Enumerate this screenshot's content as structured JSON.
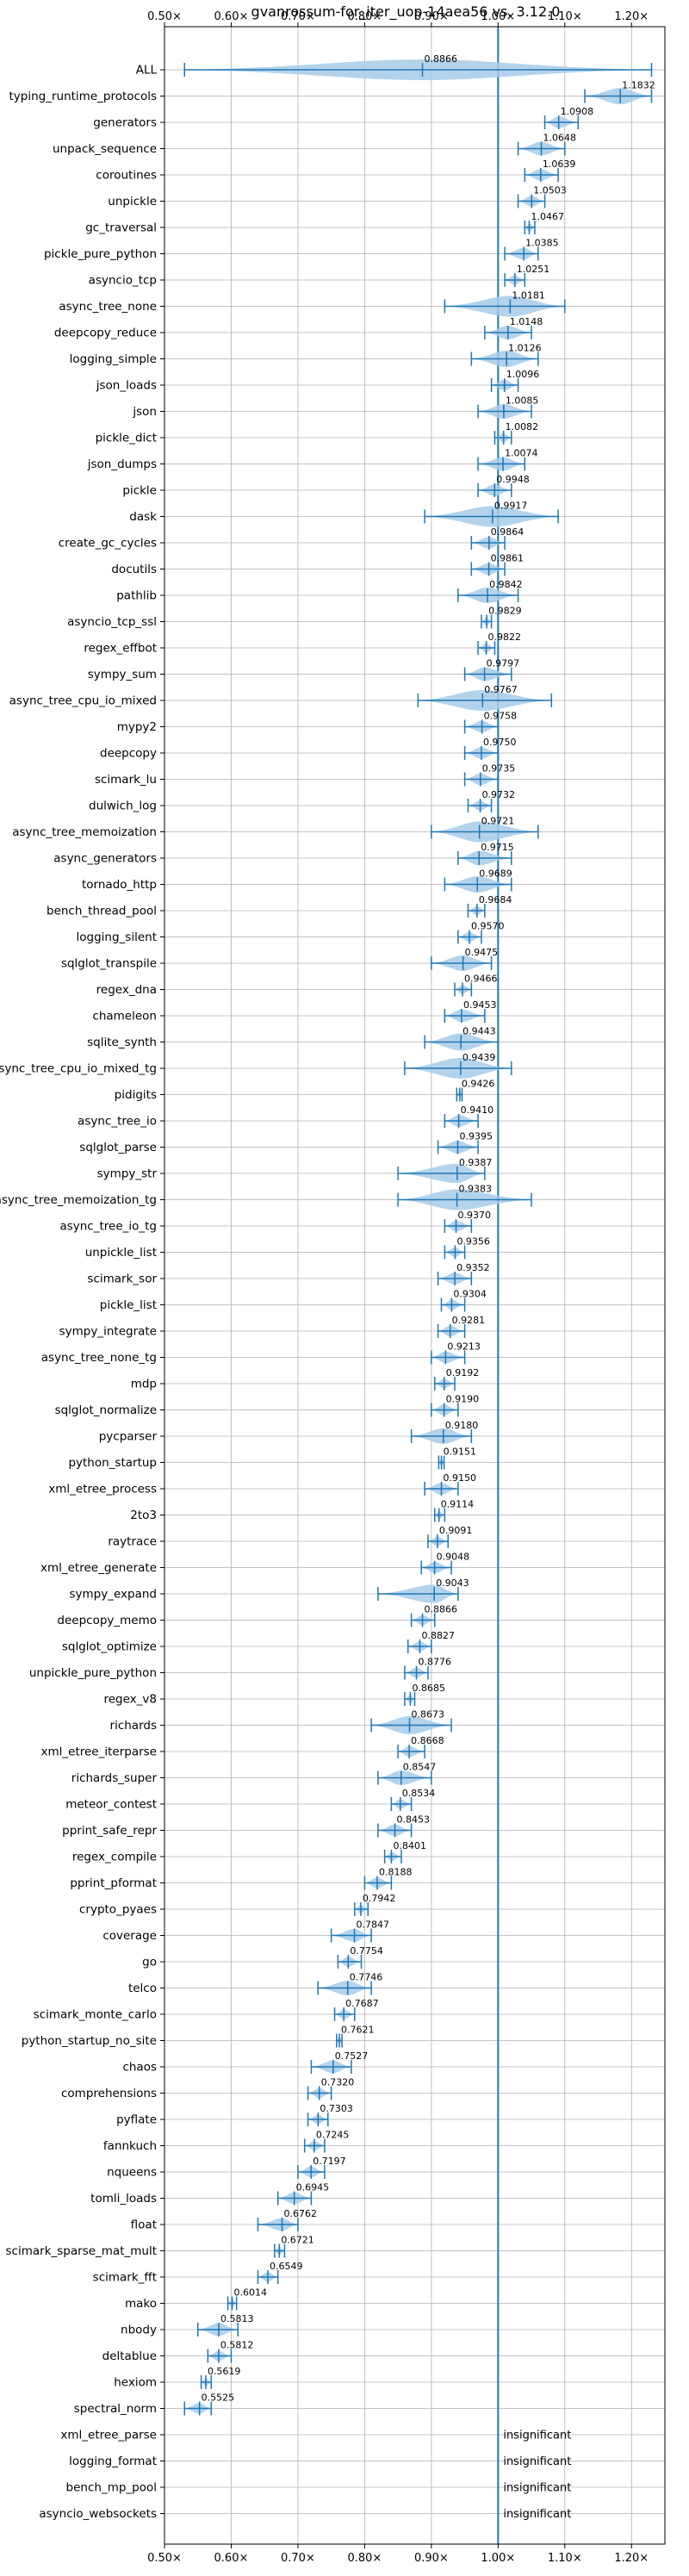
{
  "chart_data": {
    "type": "violin",
    "title": "gvanrossum-for_iter_uop-14aea56 vs. 3.12.0",
    "xlim": [
      0.5,
      1.25
    ],
    "reference_line": 1.0,
    "grid": true,
    "x_ticks": [
      "0.50×",
      "0.60×",
      "0.70×",
      "0.80×",
      "0.90×",
      "1.00×",
      "1.10×",
      "1.20×"
    ],
    "x_tick_values": [
      0.5,
      0.6,
      0.7,
      0.8,
      0.9,
      1.0,
      1.1,
      1.2
    ],
    "colors": {
      "violin": "#a6cbe9",
      "whisker": "#1f77b4",
      "refline": "#1f77b4",
      "grid": "#b0b0b0"
    },
    "insignificant_text": "insignificant",
    "benchmarks": [
      {
        "name": "ALL",
        "value": 0.8866,
        "label": "0.8866",
        "min": 0.53,
        "max": 1.23
      },
      {
        "name": "typing_runtime_protocols",
        "value": 1.1832,
        "label": "1.1832",
        "min": 1.13,
        "max": 1.23
      },
      {
        "name": "generators",
        "value": 1.0908,
        "label": "1.0908",
        "min": 1.07,
        "max": 1.12
      },
      {
        "name": "unpack_sequence",
        "value": 1.0648,
        "label": "1.0648",
        "min": 1.03,
        "max": 1.1
      },
      {
        "name": "coroutines",
        "value": 1.0639,
        "label": "1.0639",
        "min": 1.04,
        "max": 1.09
      },
      {
        "name": "unpickle",
        "value": 1.0503,
        "label": "1.0503",
        "min": 1.03,
        "max": 1.07
      },
      {
        "name": "gc_traversal",
        "value": 1.0467,
        "label": "1.0467",
        "min": 1.04,
        "max": 1.055
      },
      {
        "name": "pickle_pure_python",
        "value": 1.0385,
        "label": "1.0385",
        "min": 1.01,
        "max": 1.06
      },
      {
        "name": "asyncio_tcp",
        "value": 1.0251,
        "label": "1.0251",
        "min": 1.01,
        "max": 1.04
      },
      {
        "name": "async_tree_none",
        "value": 1.0181,
        "label": "1.0181",
        "min": 0.92,
        "max": 1.1
      },
      {
        "name": "deepcopy_reduce",
        "value": 1.0148,
        "label": "1.0148",
        "min": 0.98,
        "max": 1.05
      },
      {
        "name": "logging_simple",
        "value": 1.0126,
        "label": "1.0126",
        "min": 0.96,
        "max": 1.06
      },
      {
        "name": "json_loads",
        "value": 1.0096,
        "label": "1.0096",
        "min": 0.99,
        "max": 1.03
      },
      {
        "name": "json",
        "value": 1.0085,
        "label": "1.0085",
        "min": 0.97,
        "max": 1.05
      },
      {
        "name": "pickle_dict",
        "value": 1.0082,
        "label": "1.0082",
        "min": 0.995,
        "max": 1.02
      },
      {
        "name": "json_dumps",
        "value": 1.0074,
        "label": "1.0074",
        "min": 0.97,
        "max": 1.04
      },
      {
        "name": "pickle",
        "value": 0.9948,
        "label": "0.9948",
        "min": 0.97,
        "max": 1.02
      },
      {
        "name": "dask",
        "value": 0.9917,
        "label": "0.9917",
        "min": 0.89,
        "max": 1.09
      },
      {
        "name": "create_gc_cycles",
        "value": 0.9864,
        "label": "0.9864",
        "min": 0.96,
        "max": 1.01
      },
      {
        "name": "docutils",
        "value": 0.9861,
        "label": "0.9861",
        "min": 0.96,
        "max": 1.01
      },
      {
        "name": "pathlib",
        "value": 0.9842,
        "label": "0.9842",
        "min": 0.94,
        "max": 1.03
      },
      {
        "name": "asyncio_tcp_ssl",
        "value": 0.9829,
        "label": "0.9829",
        "min": 0.975,
        "max": 0.99
      },
      {
        "name": "regex_effbot",
        "value": 0.9822,
        "label": "0.9822",
        "min": 0.97,
        "max": 0.995
      },
      {
        "name": "sympy_sum",
        "value": 0.9797,
        "label": "0.9797",
        "min": 0.95,
        "max": 1.02
      },
      {
        "name": "async_tree_cpu_io_mixed",
        "value": 0.9767,
        "label": "0.9767",
        "min": 0.88,
        "max": 1.08
      },
      {
        "name": "mypy2",
        "value": 0.9758,
        "label": "0.9758",
        "min": 0.95,
        "max": 1.0
      },
      {
        "name": "deepcopy",
        "value": 0.975,
        "label": "0.9750",
        "min": 0.95,
        "max": 1.0
      },
      {
        "name": "scimark_lu",
        "value": 0.9735,
        "label": "0.9735",
        "min": 0.95,
        "max": 1.0
      },
      {
        "name": "dulwich_log",
        "value": 0.9732,
        "label": "0.9732",
        "min": 0.955,
        "max": 0.99
      },
      {
        "name": "async_tree_memoization",
        "value": 0.9721,
        "label": "0.9721",
        "min": 0.9,
        "max": 1.06
      },
      {
        "name": "async_generators",
        "value": 0.9715,
        "label": "0.9715",
        "min": 0.94,
        "max": 1.02
      },
      {
        "name": "tornado_http",
        "value": 0.9689,
        "label": "0.9689",
        "min": 0.92,
        "max": 1.02
      },
      {
        "name": "bench_thread_pool",
        "value": 0.9684,
        "label": "0.9684",
        "min": 0.955,
        "max": 0.98
      },
      {
        "name": "logging_silent",
        "value": 0.957,
        "label": "0.9570",
        "min": 0.94,
        "max": 0.975
      },
      {
        "name": "sqlglot_transpile",
        "value": 0.9475,
        "label": "0.9475",
        "min": 0.9,
        "max": 0.99
      },
      {
        "name": "regex_dna",
        "value": 0.9466,
        "label": "0.9466",
        "min": 0.935,
        "max": 0.96
      },
      {
        "name": "chameleon",
        "value": 0.9453,
        "label": "0.9453",
        "min": 0.92,
        "max": 0.98
      },
      {
        "name": "sqlite_synth",
        "value": 0.9443,
        "label": "0.9443",
        "min": 0.89,
        "max": 1.0
      },
      {
        "name": "async_tree_cpu_io_mixed_tg",
        "value": 0.9439,
        "label": "0.9439",
        "min": 0.86,
        "max": 1.02
      },
      {
        "name": "pidigits",
        "value": 0.9426,
        "label": "0.9426",
        "min": 0.938,
        "max": 0.946
      },
      {
        "name": "async_tree_io",
        "value": 0.941,
        "label": "0.9410",
        "min": 0.92,
        "max": 0.97
      },
      {
        "name": "sqlglot_parse",
        "value": 0.9395,
        "label": "0.9395",
        "min": 0.91,
        "max": 0.97
      },
      {
        "name": "sympy_str",
        "value": 0.9387,
        "label": "0.9387",
        "min": 0.85,
        "max": 0.98
      },
      {
        "name": "async_tree_memoization_tg",
        "value": 0.9383,
        "label": "0.9383",
        "min": 0.85,
        "max": 1.05
      },
      {
        "name": "async_tree_io_tg",
        "value": 0.937,
        "label": "0.9370",
        "min": 0.92,
        "max": 0.96
      },
      {
        "name": "unpickle_list",
        "value": 0.9356,
        "label": "0.9356",
        "min": 0.92,
        "max": 0.95
      },
      {
        "name": "scimark_sor",
        "value": 0.9352,
        "label": "0.9352",
        "min": 0.91,
        "max": 0.96
      },
      {
        "name": "pickle_list",
        "value": 0.9304,
        "label": "0.9304",
        "min": 0.915,
        "max": 0.95
      },
      {
        "name": "sympy_integrate",
        "value": 0.9281,
        "label": "0.9281",
        "min": 0.91,
        "max": 0.95
      },
      {
        "name": "async_tree_none_tg",
        "value": 0.9213,
        "label": "0.9213",
        "min": 0.9,
        "max": 0.95
      },
      {
        "name": "mdp",
        "value": 0.9192,
        "label": "0.9192",
        "min": 0.905,
        "max": 0.935
      },
      {
        "name": "sqlglot_normalize",
        "value": 0.919,
        "label": "0.9190",
        "min": 0.9,
        "max": 0.94
      },
      {
        "name": "pycparser",
        "value": 0.918,
        "label": "0.9180",
        "min": 0.87,
        "max": 0.96
      },
      {
        "name": "python_startup",
        "value": 0.9151,
        "label": "0.9151",
        "min": 0.911,
        "max": 0.919
      },
      {
        "name": "xml_etree_process",
        "value": 0.915,
        "label": "0.9150",
        "min": 0.89,
        "max": 0.94
      },
      {
        "name": "2to3",
        "value": 0.9114,
        "label": "0.9114",
        "min": 0.905,
        "max": 0.92
      },
      {
        "name": "raytrace",
        "value": 0.9091,
        "label": "0.9091",
        "min": 0.895,
        "max": 0.925
      },
      {
        "name": "xml_etree_generate",
        "value": 0.9048,
        "label": "0.9048",
        "min": 0.885,
        "max": 0.93
      },
      {
        "name": "sympy_expand",
        "value": 0.9043,
        "label": "0.9043",
        "min": 0.82,
        "max": 0.94
      },
      {
        "name": "deepcopy_memo",
        "value": 0.8866,
        "label": "0.8866",
        "min": 0.87,
        "max": 0.905
      },
      {
        "name": "sqlglot_optimize",
        "value": 0.8827,
        "label": "0.8827",
        "min": 0.865,
        "max": 0.9
      },
      {
        "name": "unpickle_pure_python",
        "value": 0.8776,
        "label": "0.8776",
        "min": 0.86,
        "max": 0.895
      },
      {
        "name": "regex_v8",
        "value": 0.8685,
        "label": "0.8685",
        "min": 0.86,
        "max": 0.875
      },
      {
        "name": "richards",
        "value": 0.8673,
        "label": "0.8673",
        "min": 0.81,
        "max": 0.93
      },
      {
        "name": "xml_etree_iterparse",
        "value": 0.8668,
        "label": "0.8668",
        "min": 0.85,
        "max": 0.89
      },
      {
        "name": "richards_super",
        "value": 0.8547,
        "label": "0.8547",
        "min": 0.82,
        "max": 0.9
      },
      {
        "name": "meteor_contest",
        "value": 0.8534,
        "label": "0.8534",
        "min": 0.84,
        "max": 0.87
      },
      {
        "name": "pprint_safe_repr",
        "value": 0.8453,
        "label": "0.8453",
        "min": 0.82,
        "max": 0.87
      },
      {
        "name": "regex_compile",
        "value": 0.8401,
        "label": "0.8401",
        "min": 0.83,
        "max": 0.855
      },
      {
        "name": "pprint_pformat",
        "value": 0.8188,
        "label": "0.8188",
        "min": 0.8,
        "max": 0.84
      },
      {
        "name": "crypto_pyaes",
        "value": 0.7942,
        "label": "0.7942",
        "min": 0.785,
        "max": 0.805
      },
      {
        "name": "coverage",
        "value": 0.7847,
        "label": "0.7847",
        "min": 0.75,
        "max": 0.81
      },
      {
        "name": "go",
        "value": 0.7754,
        "label": "0.7754",
        "min": 0.76,
        "max": 0.795
      },
      {
        "name": "telco",
        "value": 0.7746,
        "label": "0.7746",
        "min": 0.73,
        "max": 0.81
      },
      {
        "name": "scimark_monte_carlo",
        "value": 0.7687,
        "label": "0.7687",
        "min": 0.755,
        "max": 0.785
      },
      {
        "name": "python_startup_no_site",
        "value": 0.7621,
        "label": "0.7621",
        "min": 0.758,
        "max": 0.766
      },
      {
        "name": "chaos",
        "value": 0.7527,
        "label": "0.7527",
        "min": 0.72,
        "max": 0.78
      },
      {
        "name": "comprehensions",
        "value": 0.732,
        "label": "0.7320",
        "min": 0.715,
        "max": 0.75
      },
      {
        "name": "pyflate",
        "value": 0.7303,
        "label": "0.7303",
        "min": 0.715,
        "max": 0.745
      },
      {
        "name": "fannkuch",
        "value": 0.7245,
        "label": "0.7245",
        "min": 0.71,
        "max": 0.74
      },
      {
        "name": "nqueens",
        "value": 0.7197,
        "label": "0.7197",
        "min": 0.7,
        "max": 0.74
      },
      {
        "name": "tomli_loads",
        "value": 0.6945,
        "label": "0.6945",
        "min": 0.67,
        "max": 0.72
      },
      {
        "name": "float",
        "value": 0.6762,
        "label": "0.6762",
        "min": 0.64,
        "max": 0.7
      },
      {
        "name": "scimark_sparse_mat_mult",
        "value": 0.6721,
        "label": "0.6721",
        "min": 0.665,
        "max": 0.68
      },
      {
        "name": "scimark_fft",
        "value": 0.6549,
        "label": "0.6549",
        "min": 0.64,
        "max": 0.67
      },
      {
        "name": "mako",
        "value": 0.6014,
        "label": "0.6014",
        "min": 0.595,
        "max": 0.608
      },
      {
        "name": "nbody",
        "value": 0.5813,
        "label": "0.5813",
        "min": 0.55,
        "max": 0.61
      },
      {
        "name": "deltablue",
        "value": 0.5812,
        "label": "0.5812",
        "min": 0.565,
        "max": 0.6
      },
      {
        "name": "hexiom",
        "value": 0.5619,
        "label": "0.5619",
        "min": 0.555,
        "max": 0.57
      },
      {
        "name": "spectral_norm",
        "value": 0.5525,
        "label": "0.5525",
        "min": 0.53,
        "max": 0.57
      },
      {
        "name": "xml_etree_parse",
        "insignificant": true
      },
      {
        "name": "logging_format",
        "insignificant": true
      },
      {
        "name": "bench_mp_pool",
        "insignificant": true
      },
      {
        "name": "asyncio_websockets",
        "insignificant": true
      }
    ]
  }
}
